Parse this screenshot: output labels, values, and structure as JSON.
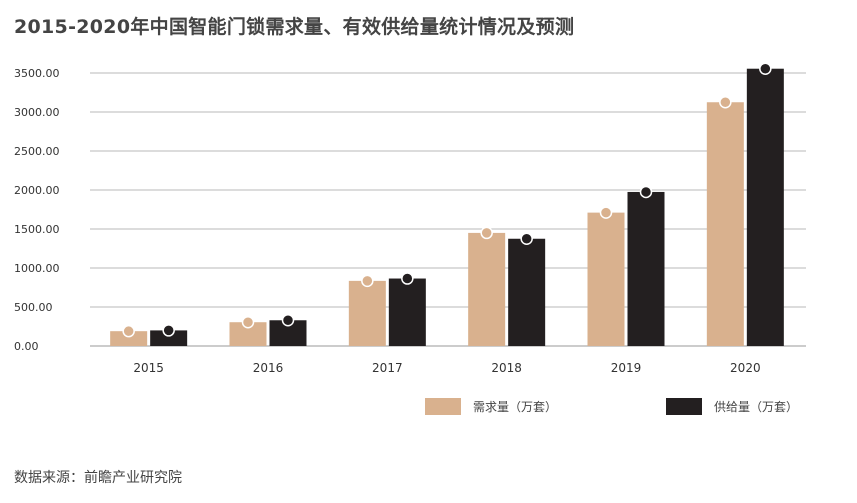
{
  "chart_data": {
    "type": "bar",
    "title": "2015-2020年中国智能门锁需求量、有效供给量统计情况及预测",
    "categories": [
      "2015",
      "2016",
      "2017",
      "2018",
      "2019",
      "2020"
    ],
    "series": [
      {
        "name": "需求量（万套）",
        "values": [
          190,
          305,
          835,
          1450,
          1710,
          3125
        ],
        "color": "#d9b18e"
      },
      {
        "name": "供给量（万套）",
        "values": [
          200,
          330,
          865,
          1375,
          1975,
          3555
        ],
        "color": "#231f20"
      }
    ],
    "y_ticks": [
      "0.00",
      "500.00",
      "1000.00",
      "1500.00",
      "2000.00",
      "2500.00",
      "3000.00",
      "3500.00"
    ],
    "ylim": [
      0,
      3500
    ],
    "grid": true,
    "legend_position": "bottom-right",
    "source": "数据来源：前瞻产业研究院"
  }
}
